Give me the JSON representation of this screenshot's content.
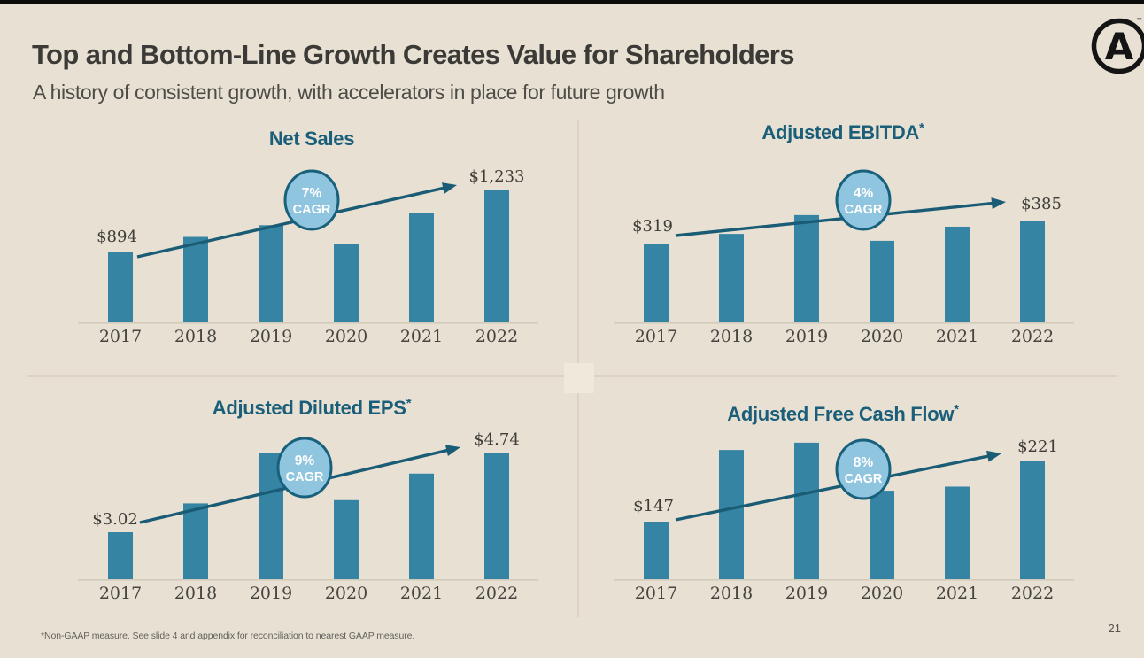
{
  "slide": {
    "title": "Top and Bottom-Line Growth Creates Value for Shareholders",
    "subtitle": "A history of consistent growth, with accelerators in place for future growth",
    "footnote": "*Non-GAAP measure. See slide 4 and appendix for reconciliation to nearest GAAP measure.",
    "page_number": "21",
    "logo": {
      "letter": "A",
      "trademark": "™"
    }
  },
  "colors": {
    "background": "#E8E1D3",
    "bar": "#3684A3",
    "arrow": "#1A5B75",
    "circle_fill": "#8FC5DE",
    "circle_stroke": "#19607C",
    "circle_text": "#FFFFFF",
    "chart_title": "#1A5E79",
    "value_label": "#3F3D38",
    "year_label": "#474540",
    "axis_line": "#D2CBBB"
  },
  "chart_data": [
    {
      "id": "net-sales",
      "type": "bar",
      "title": "Net Sales",
      "unit": "$M",
      "categories": [
        "2017",
        "2018",
        "2019",
        "2020",
        "2021",
        "2022"
      ],
      "values": [
        894,
        975,
        1040,
        937,
        1110,
        1233
      ],
      "value_labels": {
        "first": "$894",
        "last": "$1,233"
      },
      "cagr": {
        "pct": "7%",
        "word": "CAGR"
      },
      "axis_note": "y-axis truncated, no gridlines; only 2017 and 2022 bars labeled — intermediate values estimated from bar heights"
    },
    {
      "id": "adjusted-ebitda",
      "type": "bar",
      "title": "Adjusted EBITDA*",
      "unit": "$M",
      "categories": [
        "2017",
        "2018",
        "2019",
        "2020",
        "2021",
        "2022"
      ],
      "values": [
        319,
        348,
        400,
        329,
        368,
        385
      ],
      "value_labels": {
        "first": "$319",
        "last": "$385"
      },
      "cagr": {
        "pct": "4%",
        "word": "CAGR"
      },
      "axis_note": "y-axis truncated, no gridlines; only 2017 and 2022 bars labeled — intermediate values estimated from bar heights"
    },
    {
      "id": "adjusted-diluted-eps",
      "type": "bar",
      "title": "Adjusted Diluted EPS*",
      "unit": "$ per share",
      "categories": [
        "2017",
        "2018",
        "2019",
        "2020",
        "2021",
        "2022"
      ],
      "values": [
        3.02,
        3.65,
        4.75,
        3.72,
        4.3,
        4.74
      ],
      "value_labels": {
        "first": "$3.02",
        "last": "$4.74"
      },
      "cagr": {
        "pct": "9%",
        "word": "CAGR"
      },
      "axis_note": "y-axis truncated, no gridlines; only 2017 and 2022 bars labeled — intermediate values estimated from bar heights"
    },
    {
      "id": "adjusted-free-cash-flow",
      "type": "bar",
      "title": "Adjusted Free Cash Flow*",
      "unit": "$M",
      "categories": [
        "2017",
        "2018",
        "2019",
        "2020",
        "2021",
        "2022"
      ],
      "values": [
        147,
        235,
        244,
        185,
        190,
        221
      ],
      "value_labels": {
        "first": "$147",
        "last": "$221"
      },
      "cagr": {
        "pct": "8%",
        "word": "CAGR"
      },
      "axis_note": "y-axis truncated, no gridlines; 2020 bar top hidden behind CAGR badge; only 2017 and 2022 bars labeled — intermediate values estimated from bar heights"
    }
  ]
}
